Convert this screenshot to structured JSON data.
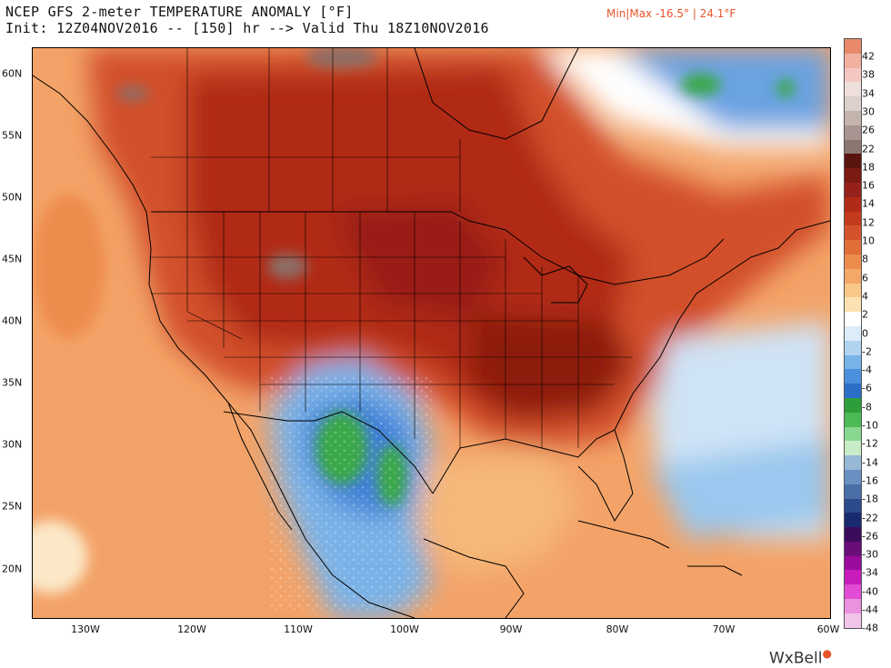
{
  "header": {
    "title_line1": "NCEP GFS 2-meter TEMPERATURE ANOMALY [°F]",
    "title_line2": "Init: 12Z04NOV2016 -- [150] hr --> Valid Thu 18Z10NOV2016",
    "minmax": "Min|Max -16.5° | 24.1°F"
  },
  "map": {
    "lat_labels": [
      "60N",
      "55N",
      "50N",
      "45N",
      "40N",
      "35N",
      "30N",
      "25N",
      "20N"
    ],
    "lon_labels": [
      "130W",
      "120W",
      "110W",
      "100W",
      "90W",
      "80W",
      "70W",
      "60W"
    ],
    "extent": {
      "lon": [
        -135,
        -60
      ],
      "lat": [
        16,
        62
      ]
    },
    "anomaly_regions": [
      {
        "region": "Western/Central US and Canada",
        "anomaly": "strong warm",
        "range_f": "10 to 20",
        "color": "#c0301c"
      },
      {
        "region": "Rockies high terrain",
        "anomaly": "extreme warm",
        "range_f": "18 to 24",
        "color": "#7a6a66"
      },
      {
        "region": "Southeast US / Tennessee Valley",
        "anomaly": "strong warm",
        "range_f": "14 to 18",
        "color": "#a81a14"
      },
      {
        "region": "Northern Mexico / West Texas",
        "anomaly": "cold",
        "range_f": "-14 to -4",
        "color": "#3a9a4a"
      },
      {
        "region": "Labrador / Newfoundland",
        "anomaly": "cold",
        "range_f": "-10 to -2",
        "color": "#4a7fd4"
      },
      {
        "region": "Western Atlantic",
        "anomaly": "slightly cold",
        "range_f": "-4 to 0",
        "color": "#9cc9ec"
      },
      {
        "region": "Pacific Ocean",
        "anomaly": "mild warm",
        "range_f": "2 to 6",
        "color": "#f2a162"
      }
    ]
  },
  "colorbar": {
    "labels": [
      "42",
      "38",
      "34",
      "30",
      "26",
      "22",
      "18",
      "16",
      "14",
      "12",
      "10",
      "8",
      "6",
      "4",
      "2",
      "0",
      "-2",
      "-4",
      "-6",
      "-8",
      "-10",
      "-12",
      "-14",
      "-16",
      "-18",
      "-22",
      "-26",
      "-30",
      "-34",
      "-40",
      "-44",
      "-48"
    ],
    "colors": [
      "#e88a6a",
      "#f2b0a0",
      "#f4c8c0",
      "#f0e0dc",
      "#dcd0cc",
      "#c4b4ae",
      "#a89490",
      "#8c7672",
      "#5a1410",
      "#7a1a12",
      "#96201a",
      "#b02a18",
      "#c43a1c",
      "#d4522a",
      "#e06e38",
      "#ec8c4c",
      "#f4a868",
      "#f8c888",
      "#fce2b0",
      "#ffffff",
      "#dcecf8",
      "#b0d4f0",
      "#78b4e8",
      "#4a90dc",
      "#2a6ec8",
      "#2e9e3c",
      "#4cba54",
      "#88d890",
      "#c8ecc8",
      "#98b8d8",
      "#6890c0",
      "#4a6ea8",
      "#2a4a8c",
      "#1a2a70",
      "#3c0c5c",
      "#6a0c7a",
      "#9a0c9c",
      "#c81cbc",
      "#e04cd4",
      "#ec90e0",
      "#f0c4e8"
    ]
  },
  "branding": {
    "name": "WxBell"
  }
}
